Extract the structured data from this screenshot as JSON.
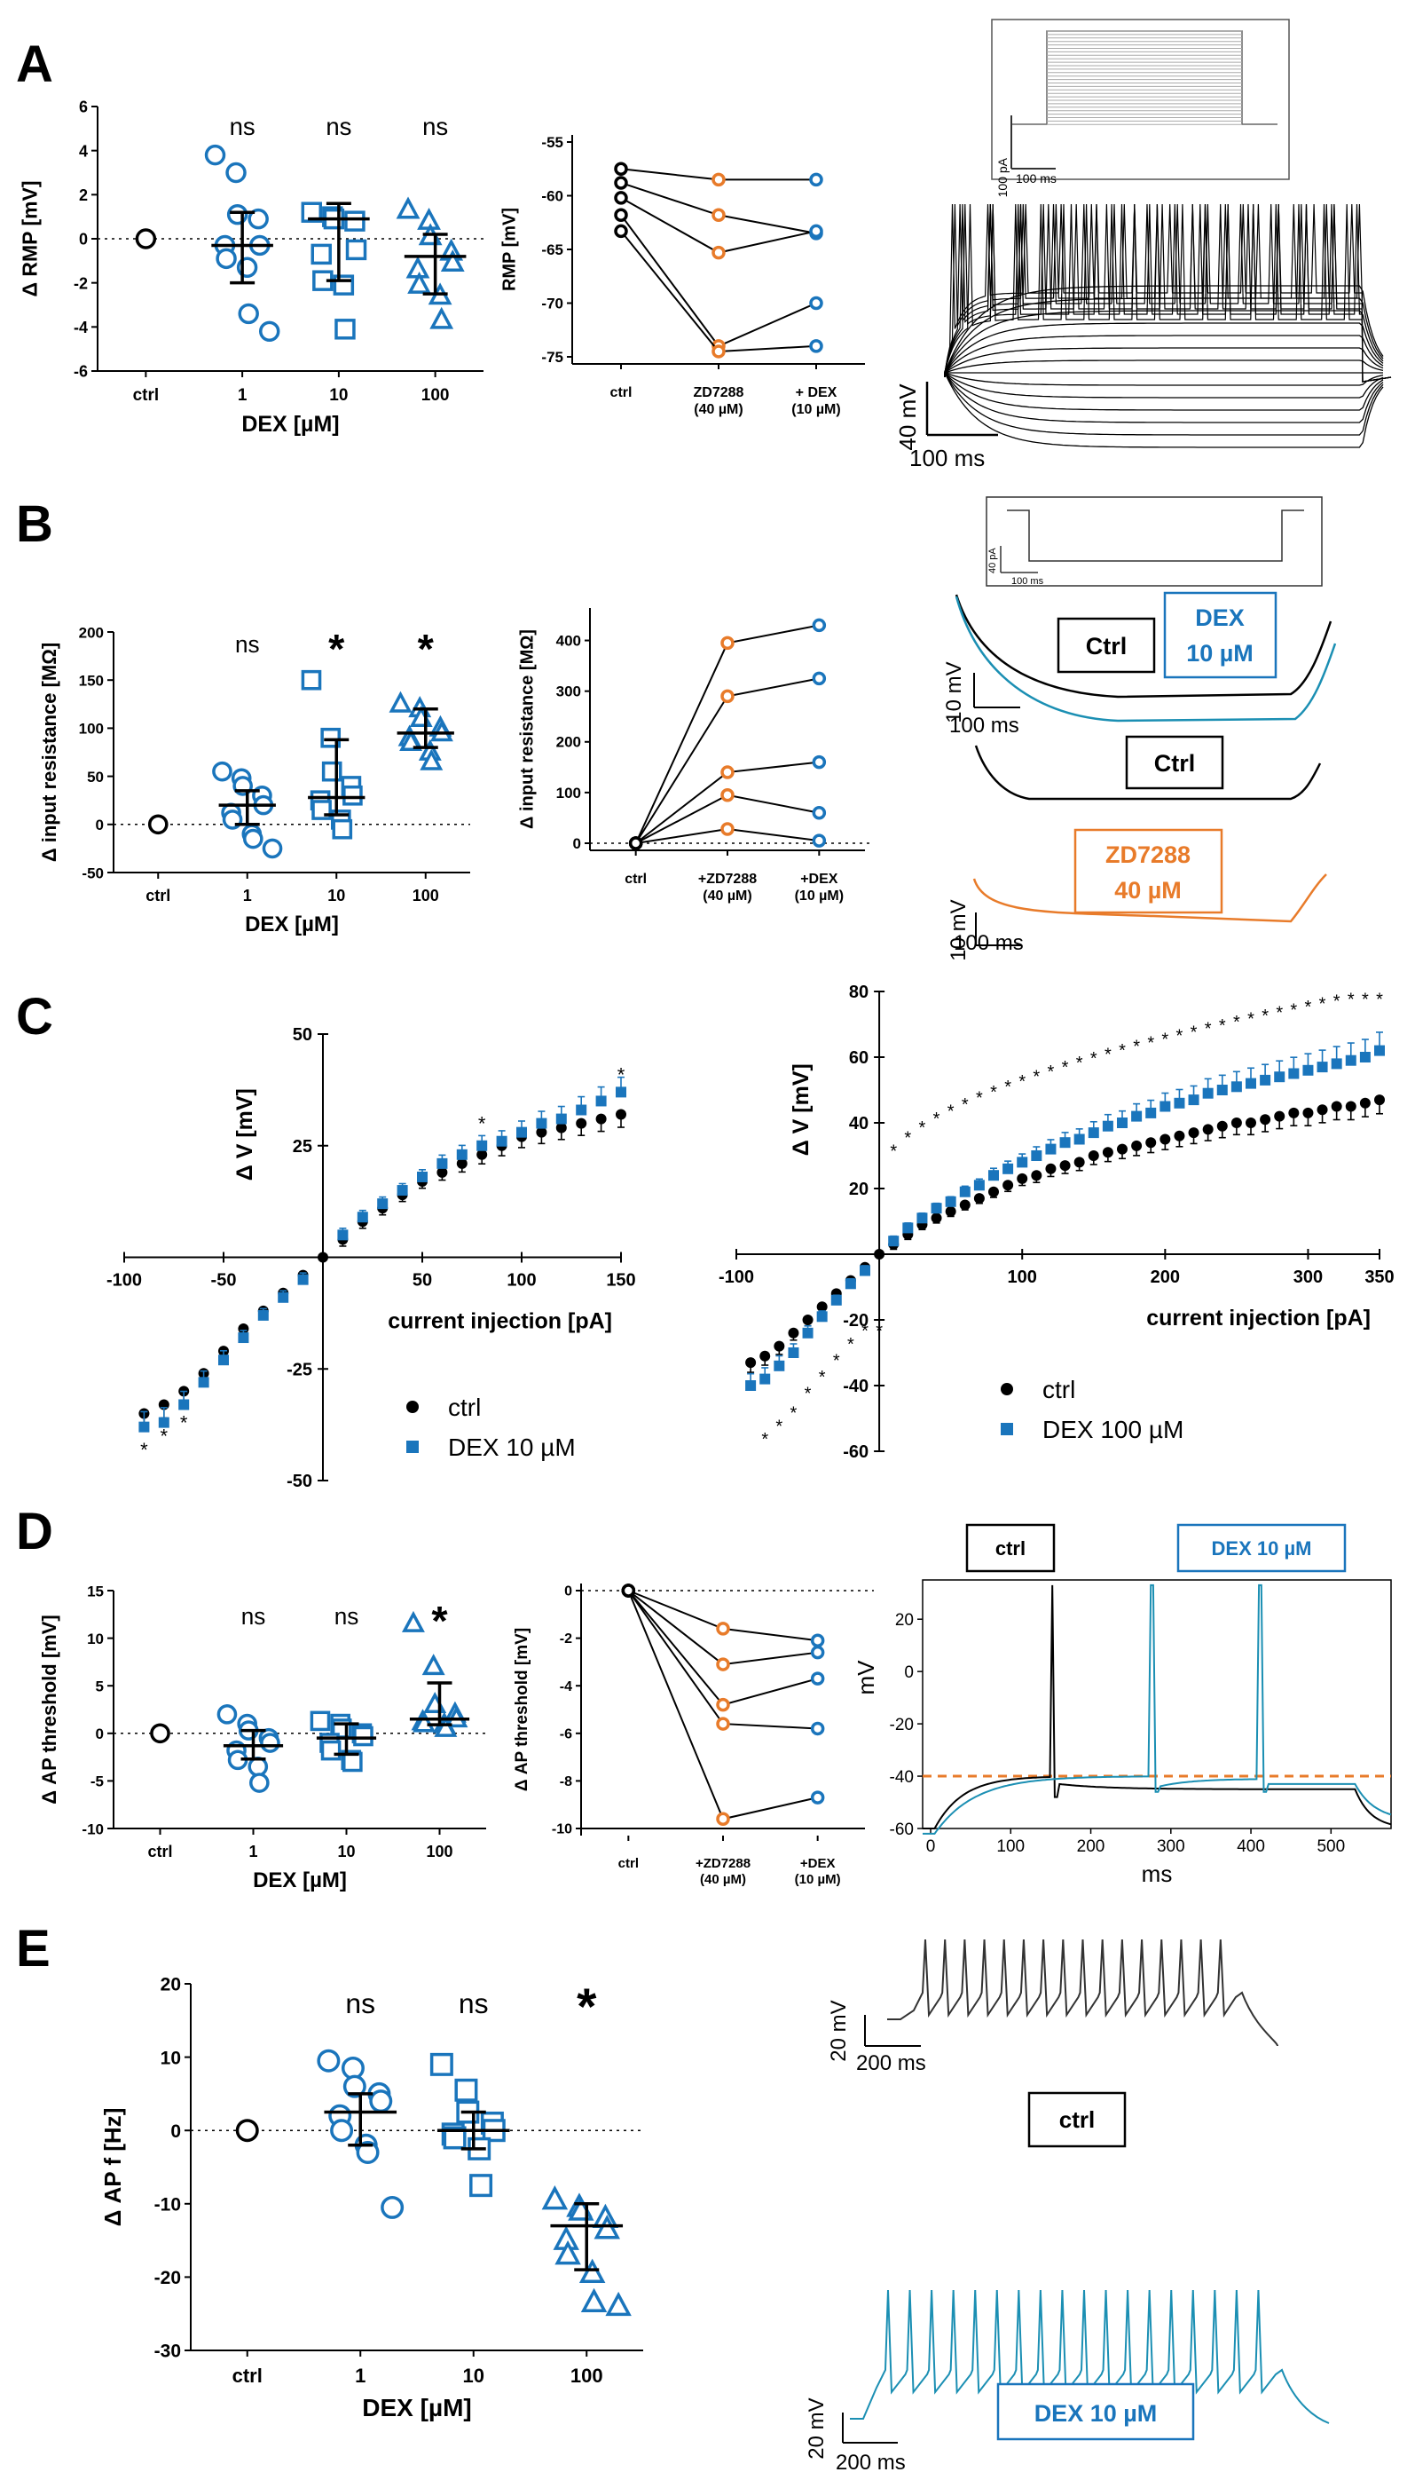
{
  "colors": {
    "ctrl": "#000000",
    "dex": "#1a75bc",
    "dex_trace": "#1b8fb3",
    "zd": "#e87b2a"
  },
  "panels": {
    "A": "A",
    "B": "B",
    "C": "C",
    "D": "D",
    "E": "E"
  },
  "stats": {
    "ns": "ns",
    "star": "*"
  },
  "chart_data": [
    {
      "id": "A1",
      "type": "scatter",
      "ylabel": "Δ RMP [mV]",
      "xlabel": "DEX [µM]",
      "categories": [
        "ctrl",
        "1",
        "10",
        "100"
      ],
      "ylim": [
        -6,
        6
      ],
      "yticks": [
        -6,
        -4,
        -2,
        0,
        2,
        4,
        6
      ],
      "markers": [
        "circle",
        "circle",
        "square",
        "triangle"
      ],
      "significance": [
        "",
        "ns",
        "ns",
        "ns"
      ],
      "groups": [
        [
          0
        ],
        [
          3.8,
          3.0,
          1.1,
          0.9,
          -0.3,
          -0.3,
          -0.9,
          -1.3,
          -3.4,
          -4.2
        ],
        [
          1.2,
          1.0,
          0.9,
          0.8,
          -0.5,
          -0.7,
          -1.9,
          -2.1,
          -4.1
        ],
        [
          1.3,
          0.8,
          0.1,
          -0.6,
          -1.1,
          -1.4,
          -2.1,
          -2.6,
          -3.7
        ]
      ],
      "median": [
        0,
        -0.3,
        0.9,
        -0.8
      ],
      "iqr": [
        [
          0,
          0
        ],
        [
          -2.0,
          1.2
        ],
        [
          -1.9,
          1.6
        ],
        [
          -2.5,
          0.2
        ]
      ]
    },
    {
      "id": "A2",
      "type": "line",
      "ylabel": "RMP [mV]",
      "categories": [
        "ctrl",
        "ZD7288\n(40 µM)",
        "+ DEX\n(10 µM)"
      ],
      "ylim": [
        -75,
        -55
      ],
      "yticks": [
        -55,
        -60,
        -65,
        -70,
        -75
      ],
      "series": [
        [
          -57.5,
          -58.5,
          -58.5
        ],
        [
          -58.8,
          -61.8,
          -63.5
        ],
        [
          -60.2,
          -65.3,
          -63.3
        ],
        [
          -61.8,
          -74.0,
          -70.0
        ],
        [
          -63.3,
          -74.5,
          -74.0
        ]
      ]
    },
    {
      "id": "B1",
      "type": "scatter",
      "ylabel": "Δ input resistance [MΩ]",
      "xlabel": "DEX [µM]",
      "categories": [
        "ctrl",
        "1",
        "10",
        "100"
      ],
      "ylim": [
        -50,
        200
      ],
      "yticks": [
        -50,
        0,
        50,
        100,
        150,
        200
      ],
      "markers": [
        "circle",
        "circle",
        "square",
        "triangle"
      ],
      "significance": [
        "",
        "ns",
        "*",
        "*"
      ],
      "groups": [
        [
          0
        ],
        [
          55,
          48,
          40,
          30,
          20,
          12,
          5,
          -10,
          -15,
          -25
        ],
        [
          150,
          90,
          55,
          40,
          30,
          25,
          15,
          5,
          -5
        ],
        [
          125,
          120,
          110,
          100,
          95,
          90,
          85,
          75,
          65
        ]
      ],
      "median": [
        0,
        20,
        28,
        95
      ],
      "iqr": [
        [
          0,
          0
        ],
        [
          0,
          35
        ],
        [
          10,
          88
        ],
        [
          80,
          120
        ]
      ]
    },
    {
      "id": "B2",
      "type": "line",
      "ylabel": "Δ input resistance [MΩ]",
      "categories": [
        "ctrl",
        "+ZD7288\n(40 µM)",
        "+DEX\n(10 µM)"
      ],
      "ylim": [
        0,
        450
      ],
      "yticks": [
        0,
        100,
        200,
        300,
        400
      ],
      "series": [
        [
          0,
          395,
          430
        ],
        [
          0,
          290,
          325
        ],
        [
          0,
          140,
          160
        ],
        [
          0,
          95,
          60
        ],
        [
          0,
          28,
          5
        ]
      ]
    },
    {
      "id": "C1",
      "type": "line",
      "ylabel": "Δ V [mV]",
      "xlabel": "current injection [pA]",
      "xlim": [
        -100,
        150
      ],
      "ylim": [
        -50,
        50
      ],
      "xticks": [
        -100,
        -50,
        50,
        100,
        150
      ],
      "yticks": [
        -50,
        -25,
        25,
        50
      ],
      "legend": [
        "ctrl",
        "DEX 10 µM"
      ],
      "x": [
        -90,
        -80,
        -70,
        -60,
        -50,
        -40,
        -30,
        -20,
        -10,
        10,
        20,
        30,
        40,
        50,
        60,
        70,
        80,
        90,
        100,
        110,
        120,
        130,
        140,
        150
      ],
      "series": [
        {
          "name": "ctrl",
          "values": [
            -35,
            -33,
            -30,
            -26,
            -21,
            -16,
            -12,
            -8,
            -4,
            4,
            8,
            11,
            14,
            17,
            19,
            21,
            23,
            25,
            27,
            28,
            29,
            30,
            31,
            32
          ]
        },
        {
          "name": "DEX 10 µM",
          "values": [
            -38,
            -37,
            -33,
            -28,
            -23,
            -18,
            -13,
            -9,
            -5,
            5,
            9,
            12,
            15,
            18,
            21,
            23,
            25,
            26,
            28,
            30,
            31,
            33,
            35,
            37
          ]
        }
      ],
      "sig_x": [
        -90,
        -80,
        -70,
        80,
        150
      ],
      "sig_y": [
        -43,
        -40,
        -37,
        30,
        41
      ]
    },
    {
      "id": "C2",
      "type": "line",
      "ylabel": "Δ V [mV]",
      "xlabel": "current injection [pA]",
      "xlim": [
        -100,
        350
      ],
      "ylim": [
        -60,
        80
      ],
      "xticks": [
        -100,
        100,
        200,
        300,
        350
      ],
      "yticks": [
        -60,
        -40,
        -20,
        20,
        40,
        60,
        80
      ],
      "legend": [
        "ctrl",
        "DEX 100 µM"
      ],
      "x": [
        -90,
        -80,
        -70,
        -60,
        -50,
        -40,
        -30,
        -20,
        -10,
        10,
        20,
        30,
        40,
        50,
        60,
        70,
        80,
        90,
        100,
        110,
        120,
        130,
        140,
        150,
        160,
        170,
        180,
        190,
        200,
        210,
        220,
        230,
        240,
        250,
        260,
        270,
        280,
        290,
        300,
        310,
        320,
        330,
        340,
        350
      ],
      "series": [
        {
          "name": "ctrl",
          "values": [
            -33,
            -31,
            -28,
            -24,
            -20,
            -16,
            -12,
            -8,
            -4,
            3,
            6,
            9,
            11,
            13,
            15,
            17,
            19,
            21,
            23,
            24,
            26,
            27,
            28,
            30,
            31,
            32,
            33,
            34,
            35,
            36,
            37,
            38,
            39,
            40,
            40,
            41,
            42,
            43,
            43,
            44,
            45,
            45,
            46,
            47
          ]
        },
        {
          "name": "DEX 100 µM",
          "values": [
            -40,
            -38,
            -34,
            -30,
            -24,
            -19,
            -14,
            -9,
            -5,
            4,
            8,
            11,
            14,
            16,
            19,
            21,
            24,
            26,
            28,
            30,
            32,
            34,
            35,
            37,
            39,
            40,
            42,
            43,
            45,
            46,
            47,
            49,
            50,
            51,
            52,
            53,
            54,
            55,
            56,
            57,
            58,
            59,
            60,
            62
          ]
        }
      ],
      "sig_above_x": [
        -80,
        -70,
        -60,
        -50,
        -40,
        -30,
        -20,
        -10,
        0,
        10,
        20,
        30,
        40,
        50,
        60,
        70,
        80,
        90,
        100,
        110,
        120,
        130,
        140,
        150,
        160,
        170,
        180,
        190,
        200,
        210,
        220,
        230,
        240,
        250,
        260,
        270,
        280,
        290,
        300,
        310,
        320,
        330,
        340,
        350
      ]
    },
    {
      "id": "D1",
      "type": "scatter",
      "ylabel": "Δ AP threshold  [mV]",
      "xlabel": "DEX [µM]",
      "categories": [
        "ctrl",
        "1",
        "10",
        "100"
      ],
      "ylim": [
        -10,
        15
      ],
      "yticks": [
        -10,
        -5,
        0,
        5,
        10,
        15
      ],
      "markers": [
        "circle",
        "circle",
        "square",
        "triangle"
      ],
      "significance": [
        "",
        "ns",
        "ns",
        "*"
      ],
      "groups": [
        [
          0
        ],
        [
          2.0,
          1.0,
          0.3,
          -0.5,
          -1.0,
          -1.8,
          -2.8,
          -3.5,
          -5.2
        ],
        [
          1.3,
          1.0,
          0.5,
          0.0,
          -0.3,
          -1.0,
          -1.8,
          -2.8,
          -3.0
        ],
        [
          11.5,
          7.0,
          3.0,
          2.0,
          1.5,
          1.2,
          1.0,
          0.9,
          0.5
        ]
      ],
      "median": [
        0,
        -1.3,
        -0.5,
        1.5
      ],
      "iqr": [
        [
          0,
          0
        ],
        [
          -2.7,
          0.3
        ],
        [
          -2.2,
          1.0
        ],
        [
          0.9,
          5.3
        ]
      ]
    },
    {
      "id": "D2",
      "type": "line",
      "ylabel": "Δ AP threshold [mV]",
      "categories": [
        "ctrl",
        "+ZD7288\n(40 µM)",
        "+DEX\n(10 µM)"
      ],
      "ylim": [
        -10,
        0
      ],
      "yticks": [
        0,
        -2,
        -4,
        -6,
        -8,
        -10
      ],
      "series": [
        [
          0,
          -1.6,
          -2.1
        ],
        [
          0,
          -3.1,
          -2.6
        ],
        [
          0,
          -4.8,
          -3.7
        ],
        [
          0,
          -5.6,
          -5.8
        ],
        [
          0,
          -9.6,
          -8.7
        ]
      ]
    },
    {
      "id": "D3",
      "type": "line",
      "ylabel": "mV",
      "xlabel": "ms",
      "xlim": [
        -10,
        575
      ],
      "ylim": [
        -60,
        35
      ],
      "xticks": [
        0,
        100,
        200,
        300,
        400,
        500
      ],
      "yticks": [
        -60,
        -40,
        -20,
        0,
        20
      ],
      "legend": [
        "ctrl",
        "DEX 10 µM"
      ],
      "threshold": -40
    },
    {
      "id": "E1",
      "type": "scatter",
      "ylabel": "Δ AP f [Hz]",
      "xlabel": "DEX [µM]",
      "categories": [
        "ctrl",
        "1",
        "10",
        "100"
      ],
      "ylim": [
        -30,
        20
      ],
      "yticks": [
        -30,
        -20,
        -10,
        0,
        10,
        20
      ],
      "markers": [
        "circle",
        "circle",
        "square",
        "triangle"
      ],
      "significance": [
        "",
        "ns",
        "ns",
        "*"
      ],
      "groups": [
        [
          0
        ],
        [
          9.5,
          8.5,
          6.0,
          5.0,
          4.0,
          2.0,
          0.0,
          -2.0,
          -3.0,
          -10.5
        ],
        [
          9.0,
          5.5,
          2.5,
          1.0,
          0.0,
          -0.5,
          -1.0,
          -2.5,
          -7.5
        ],
        [
          -9.5,
          -10.5,
          -11.0,
          -12.0,
          -13.5,
          -15.0,
          -17.0,
          -19.5,
          -23.5,
          -24.0
        ]
      ],
      "median": [
        0,
        2.5,
        0.0,
        -13.0
      ],
      "iqr": [
        [
          0,
          0
        ],
        [
          -2.0,
          5.0
        ],
        [
          -2.5,
          2.5
        ],
        [
          -19.0,
          -10.0
        ]
      ]
    }
  ],
  "traces": {
    "stim_scale_pA": "100 pA",
    "stim_scale_ms": "100 ms",
    "a_scale_mV": "40 mV",
    "a_scale_ms": "100 ms",
    "b_stim_pA": "40 pA",
    "b_stim_ms": "100 ms",
    "b_scale_mV": "10 mV",
    "b_scale_ms": "100 ms",
    "b_ctrl": "Ctrl",
    "b_dex1": "DEX",
    "b_dex2": "10 µM",
    "b_ctrl2": "Ctrl",
    "b_zd1": "ZD7288",
    "b_zd2": "40 µM",
    "d_ctrl": "ctrl",
    "d_dex": "DEX 10 µM",
    "e_scale_mV": "20 mV",
    "e_scale_ms": "200 ms",
    "e_ctrl": "ctrl",
    "e_dex": "DEX 10 µM"
  }
}
